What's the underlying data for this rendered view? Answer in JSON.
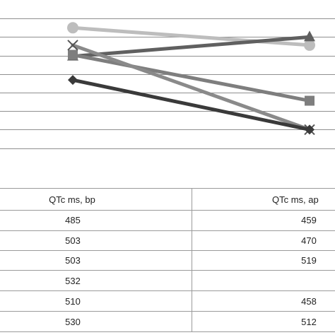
{
  "chart_data": {
    "type": "line",
    "categories": [
      "bp",
      "ap"
    ],
    "series": [
      {
        "marker": "circle",
        "color": "#bdbdbd",
        "values": [
          32.5,
          27.8
        ]
      },
      {
        "marker": "triangle",
        "color": "#606060",
        "values": [
          24.8,
          30.0
        ]
      },
      {
        "marker": "square",
        "color": "#7e7e7e",
        "values": [
          25.2,
          12.8
        ]
      },
      {
        "marker": "x",
        "color": "#8a8a8a",
        "values": [
          27.8,
          5.0
        ]
      },
      {
        "marker": "diamond",
        "color": "#3a3a3a",
        "values": [
          18.4,
          5.0
        ]
      }
    ],
    "ylim": [
      -10,
      40
    ],
    "gridlines": [
      0,
      5,
      10,
      15,
      20,
      25,
      30,
      35
    ],
    "grid": true,
    "legend": "none"
  },
  "table": {
    "headers": [
      "QTc ms, bp",
      "QTc ms, ap"
    ],
    "rows": [
      [
        "485",
        "459"
      ],
      [
        "503",
        "470"
      ],
      [
        "503",
        "519"
      ],
      [
        "532",
        ""
      ],
      [
        "510",
        "458"
      ],
      [
        "530",
        "512"
      ]
    ]
  }
}
